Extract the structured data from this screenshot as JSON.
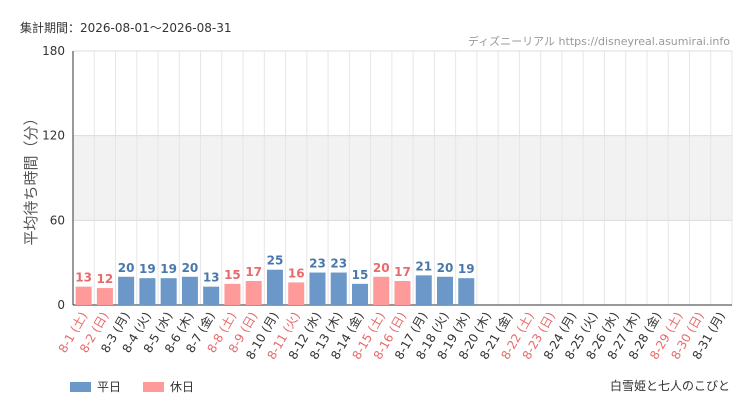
{
  "header": {
    "period": "集計期間：2026-08-01～2026-08-31",
    "credit": "ディズニーリアル https://disneyreal.asumirai.info"
  },
  "footer": {
    "attraction": "白雪姫と七人のこびと"
  },
  "legend": [
    {
      "label": "平日",
      "color": "#6b98c8"
    },
    {
      "label": "休日",
      "color": "#ff9a9a"
    }
  ],
  "colors": {
    "weekday": "#6b98c8",
    "holiday": "#ff9a9a",
    "weekday_label": "#4a78ad",
    "holiday_label": "#e86a6a",
    "band": "#f2f2f2"
  },
  "chart_data": {
    "type": "bar",
    "ylabel": "平均待ち時間（分）",
    "ylim": [
      0,
      180
    ],
    "yticks": [
      0,
      60,
      120,
      180
    ],
    "shaded_bands": [
      [
        60,
        120
      ]
    ],
    "grid": true,
    "categories": [
      "8-1 (土)",
      "8-2 (日)",
      "8-3 (月)",
      "8-4 (火)",
      "8-5 (水)",
      "8-6 (木)",
      "8-7 (金)",
      "8-8 (土)",
      "8-9 (日)",
      "8-10 (月)",
      "8-11 (火)",
      "8-12 (水)",
      "8-13 (木)",
      "8-14 (金)",
      "8-15 (土)",
      "8-16 (日)",
      "8-17 (月)",
      "8-18 (火)",
      "8-19 (水)",
      "8-20 (木)",
      "8-21 (金)",
      "8-22 (土)",
      "8-23 (日)",
      "8-24 (月)",
      "8-25 (火)",
      "8-26 (水)",
      "8-27 (木)",
      "8-28 (金)",
      "8-29 (土)",
      "8-30 (日)",
      "8-31 (月)"
    ],
    "values": [
      13,
      12,
      20,
      19,
      19,
      20,
      13,
      15,
      17,
      25,
      16,
      23,
      23,
      15,
      20,
      17,
      21,
      20,
      19,
      null,
      null,
      null,
      null,
      null,
      null,
      null,
      null,
      null,
      null,
      null,
      null
    ],
    "holiday": [
      true,
      true,
      false,
      false,
      false,
      false,
      false,
      true,
      true,
      false,
      true,
      false,
      false,
      false,
      true,
      true,
      false,
      false,
      false,
      false,
      false,
      true,
      true,
      false,
      false,
      false,
      false,
      false,
      true,
      true,
      false
    ],
    "series": [
      {
        "name": "平日",
        "color": "#6b98c8"
      },
      {
        "name": "休日",
        "color": "#ff9a9a"
      }
    ]
  }
}
